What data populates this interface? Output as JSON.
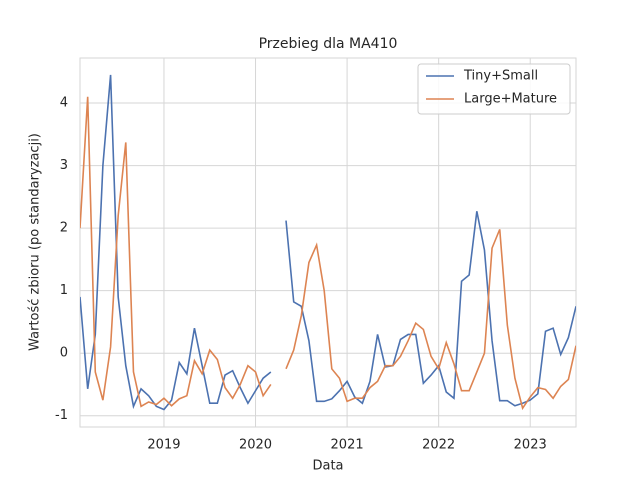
{
  "chart_data": {
    "type": "line",
    "title": "Przebieg dla MA410",
    "xlabel": "Data",
    "ylabel": "Wartość zbioru (po standaryzacji)",
    "x": [
      2018.083,
      2018.167,
      2018.25,
      2018.333,
      2018.417,
      2018.5,
      2018.583,
      2018.667,
      2018.75,
      2018.833,
      2018.917,
      2019.0,
      2019.083,
      2019.167,
      2019.25,
      2019.333,
      2019.417,
      2019.5,
      2019.583,
      2019.667,
      2019.75,
      2019.833,
      2019.917,
      2020.0,
      2020.083,
      2020.167,
      2020.25,
      2020.333,
      2020.417,
      2020.5,
      2020.583,
      2020.667,
      2020.75,
      2020.833,
      2020.917,
      2021.0,
      2021.083,
      2021.167,
      2021.25,
      2021.333,
      2021.417,
      2021.5,
      2021.583,
      2021.667,
      2021.75,
      2021.833,
      2021.917,
      2022.0,
      2022.083,
      2022.167,
      2022.25,
      2022.333,
      2022.417,
      2022.5,
      2022.583,
      2022.667,
      2022.75,
      2022.833,
      2022.917,
      2023.0,
      2023.083,
      2023.167,
      2023.25,
      2023.333,
      2023.417,
      2023.5
    ],
    "series": [
      {
        "name": "Tiny+Small",
        "color": "#4c72b0",
        "values": [
          0.9,
          -0.57,
          0.3,
          3.0,
          4.45,
          0.9,
          -0.2,
          -0.85,
          -0.57,
          -0.68,
          -0.85,
          -0.9,
          -0.75,
          -0.15,
          -0.33,
          0.4,
          -0.2,
          -0.8,
          -0.8,
          -0.35,
          -0.28,
          -0.55,
          -0.8,
          -0.6,
          -0.4,
          -0.3,
          null,
          2.12,
          0.82,
          0.75,
          0.2,
          -0.77,
          -0.77,
          -0.73,
          -0.6,
          -0.45,
          -0.7,
          -0.8,
          -0.45,
          0.3,
          -0.22,
          -0.2,
          0.22,
          0.3,
          0.3,
          -0.48,
          -0.35,
          -0.2,
          -0.62,
          -0.72,
          1.15,
          1.25,
          2.27,
          1.65,
          0.2,
          -0.76,
          -0.76,
          -0.84,
          -0.8,
          -0.75,
          -0.65,
          0.35,
          0.4,
          -0.02,
          0.25,
          0.75
        ]
      },
      {
        "name": "Large+Mature",
        "color": "#dd8452",
        "values": [
          2.0,
          4.1,
          -0.3,
          -0.75,
          0.1,
          2.2,
          3.37,
          -0.3,
          -0.85,
          -0.78,
          -0.82,
          -0.72,
          -0.84,
          -0.73,
          -0.68,
          -0.12,
          -0.33,
          0.05,
          -0.1,
          -0.55,
          -0.72,
          -0.5,
          -0.2,
          -0.3,
          -0.68,
          -0.5,
          null,
          -0.25,
          0.05,
          0.6,
          1.45,
          1.73,
          1.0,
          -0.25,
          -0.4,
          -0.77,
          -0.72,
          -0.72,
          -0.55,
          -0.45,
          -0.2,
          -0.2,
          -0.05,
          0.2,
          0.48,
          0.38,
          -0.05,
          -0.25,
          0.17,
          -0.17,
          -0.6,
          -0.6,
          -0.3,
          0.0,
          1.68,
          1.98,
          0.45,
          -0.4,
          -0.88,
          -0.7,
          -0.55,
          -0.58,
          -0.72,
          -0.53,
          -0.42,
          0.12
        ]
      }
    ],
    "xlim": [
      2018.083,
      2023.5
    ],
    "xticks": [
      2019,
      2020,
      2021,
      2022,
      2023
    ],
    "ylim": [
      -1.18,
      4.72
    ],
    "yticks": [
      -1,
      0,
      1,
      2,
      3,
      4
    ],
    "grid": true,
    "legend": "upper right"
  }
}
